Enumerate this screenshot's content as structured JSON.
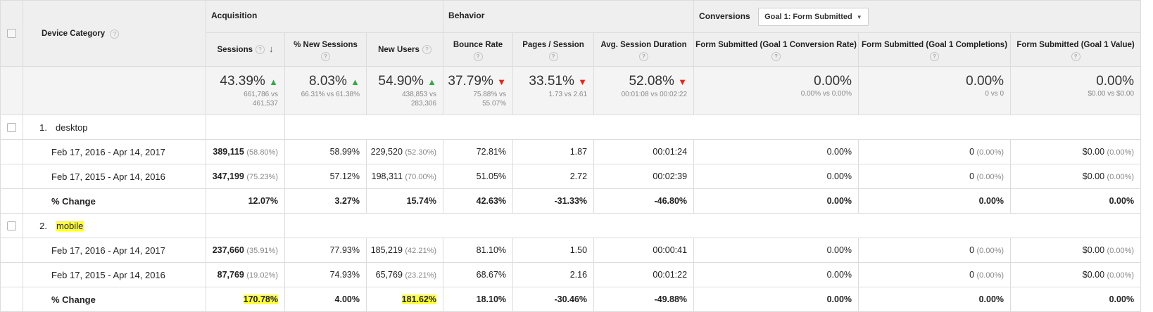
{
  "header": {
    "dimension_label": "Device Category",
    "groups": {
      "acquisition": "Acquisition",
      "behavior": "Behavior",
      "conversions": "Conversions"
    },
    "goal_select": "Goal 1: Form Submitted",
    "columns": {
      "sessions": "Sessions",
      "new_sessions": "% New Sessions",
      "new_users": "New Users",
      "bounce_rate": "Bounce Rate",
      "pages_session": "Pages / Session",
      "avg_duration": "Avg. Session Duration",
      "conv_rate": "Form Submitted (Goal 1 Conversion Rate)",
      "completions": "Form Submitted (Goal 1 Completions)",
      "value": "Form Submitted (Goal 1 Value)"
    }
  },
  "totals": {
    "sessions": {
      "big": "43.39%",
      "sub1": "661,786 vs",
      "sub2": "461,537"
    },
    "new_sessions": {
      "big": "8.03%",
      "sub1": "66.31% vs 61.38%"
    },
    "new_users": {
      "big": "54.90%",
      "sub1": "438,853 vs",
      "sub2": "283,306"
    },
    "bounce_rate": {
      "big": "37.79%",
      "sub1": "75.88% vs",
      "sub2": "55.07%"
    },
    "pages_session": {
      "big": "33.51%",
      "sub1": "1.73 vs 2.61"
    },
    "avg_duration": {
      "big": "52.08%",
      "sub1": "00:01:08 vs 00:02:22"
    },
    "conv_rate": {
      "big": "0.00%",
      "sub1": "0.00% vs 0.00%"
    },
    "completions": {
      "big": "0.00%",
      "sub1": "0 vs 0"
    },
    "value": {
      "big": "0.00%",
      "sub1": "$0.00 vs $0.00"
    }
  },
  "groups": [
    {
      "index": "1.",
      "name": "desktop",
      "rows": [
        {
          "label": "Feb 17, 2016 - Apr 14, 2017",
          "sessions": "389,115",
          "sessions_pct": "(58.80%)",
          "new_sessions": "58.99%",
          "new_users": "229,520",
          "new_users_pct": "(52.30%)",
          "bounce_rate": "72.81%",
          "pages_session": "1.87",
          "avg_duration": "00:01:24",
          "conv_rate": "0.00%",
          "completions": "0",
          "completions_pct": "(0.00%)",
          "value": "$0.00",
          "value_pct": "(0.00%)"
        },
        {
          "label": "Feb 17, 2015 - Apr 14, 2016",
          "sessions": "347,199",
          "sessions_pct": "(75.23%)",
          "new_sessions": "57.12%",
          "new_users": "198,311",
          "new_users_pct": "(70.00%)",
          "bounce_rate": "51.05%",
          "pages_session": "2.72",
          "avg_duration": "00:02:39",
          "conv_rate": "0.00%",
          "completions": "0",
          "completions_pct": "(0.00%)",
          "value": "$0.00",
          "value_pct": "(0.00%)"
        }
      ],
      "change": {
        "label": "% Change",
        "sessions": "12.07%",
        "new_sessions": "3.27%",
        "new_users": "15.74%",
        "bounce_rate": "42.63%",
        "pages_session": "-31.33%",
        "avg_duration": "-46.80%",
        "conv_rate": "0.00%",
        "completions": "0.00%",
        "value": "0.00%"
      }
    },
    {
      "index": "2.",
      "name": "mobile",
      "rows": [
        {
          "label": "Feb 17, 2016 - Apr 14, 2017",
          "sessions": "237,660",
          "sessions_pct": "(35.91%)",
          "new_sessions": "77.93%",
          "new_users": "185,219",
          "new_users_pct": "(42.21%)",
          "bounce_rate": "81.10%",
          "pages_session": "1.50",
          "avg_duration": "00:00:41",
          "conv_rate": "0.00%",
          "completions": "0",
          "completions_pct": "(0.00%)",
          "value": "$0.00",
          "value_pct": "(0.00%)"
        },
        {
          "label": "Feb 17, 2015 - Apr 14, 2016",
          "sessions": "87,769",
          "sessions_pct": "(19.02%)",
          "new_sessions": "74.93%",
          "new_users": "65,769",
          "new_users_pct": "(23.21%)",
          "bounce_rate": "68.67%",
          "pages_session": "2.16",
          "avg_duration": "00:01:22",
          "conv_rate": "0.00%",
          "completions": "0",
          "completions_pct": "(0.00%)",
          "value": "$0.00",
          "value_pct": "(0.00%)"
        }
      ],
      "change": {
        "label": "% Change",
        "sessions": "170.78%",
        "new_sessions": "4.00%",
        "new_users": "181.62%",
        "bounce_rate": "18.10%",
        "pages_session": "-30.46%",
        "avg_duration": "-49.88%",
        "conv_rate": "0.00%",
        "completions": "0.00%",
        "value": "0.00%"
      }
    }
  ],
  "colors": {
    "up": "#3aa84a",
    "down": "#e1261c",
    "highlight": "#ffff3a",
    "header_bg": "#efefef"
  }
}
